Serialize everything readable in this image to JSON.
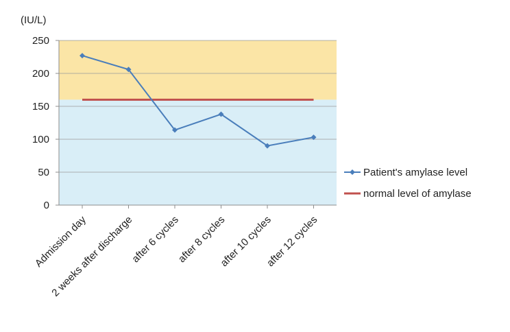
{
  "chart_data": {
    "type": "line",
    "title": "",
    "xlabel": "",
    "ylabel": "(IU/L)",
    "ylim": [
      0,
      250
    ],
    "yticks": [
      0,
      50,
      100,
      150,
      200,
      250
    ],
    "grid": true,
    "legend_position": "right",
    "categories": [
      "Admission day",
      "2 weeks after discharge",
      "after 6 cycles",
      "after 8 cycles",
      "after 10 cycles",
      "after 12 cycles"
    ],
    "series": [
      {
        "name": "Patient's amylase level",
        "values": [
          227,
          206,
          114,
          138,
          90,
          103
        ],
        "color": "#4a7ebb"
      },
      {
        "name": "normal level of amylase",
        "values": [
          160,
          160,
          160,
          160,
          160,
          160
        ],
        "color": "#c0504d"
      }
    ],
    "bands": [
      {
        "from": 160,
        "to": 250,
        "color": "#fbe5a6"
      },
      {
        "from": 0,
        "to": 160,
        "color": "#d9eef7"
      }
    ]
  }
}
